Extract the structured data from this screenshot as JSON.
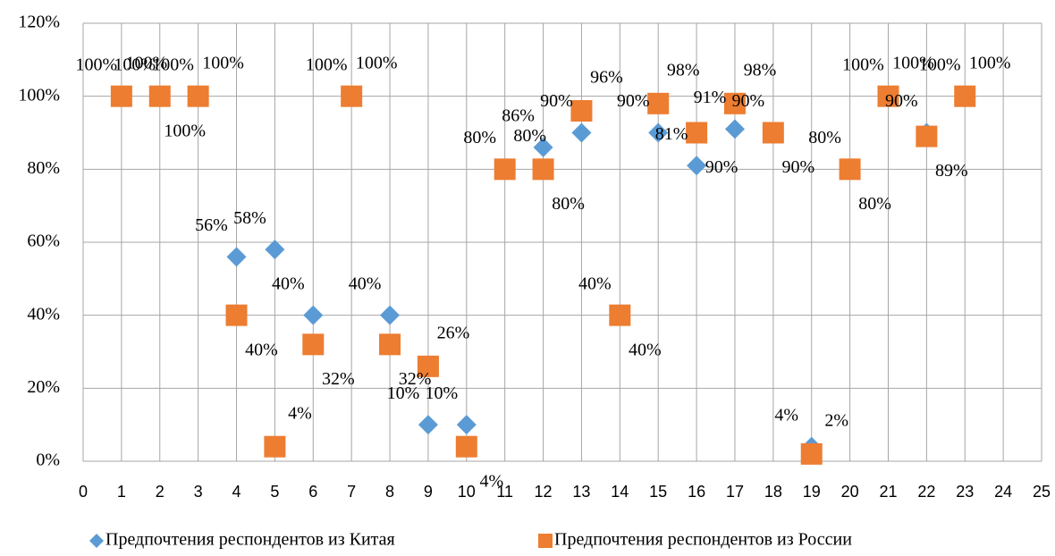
{
  "chart_data": {
    "type": "scatter",
    "xlim": [
      0,
      25
    ],
    "xticks": [
      0,
      1,
      2,
      3,
      4,
      5,
      6,
      7,
      8,
      9,
      10,
      11,
      12,
      13,
      14,
      15,
      16,
      17,
      18,
      19,
      20,
      21,
      22,
      23,
      24,
      25
    ],
    "ylim": [
      0,
      120
    ],
    "yticks": [
      {
        "value": 0,
        "label": "0%"
      },
      {
        "value": 20,
        "label": "20%"
      },
      {
        "value": 40,
        "label": "40%"
      },
      {
        "value": 60,
        "label": "60%"
      },
      {
        "value": 80,
        "label": "80%"
      },
      {
        "value": 100,
        "label": "100%"
      },
      {
        "value": 120,
        "label": "120%"
      }
    ],
    "grid": true,
    "legend": "bottom",
    "series": [
      {
        "name": "Предпочтения респондентов из Китая",
        "color": "#5b9bd5",
        "marker": "diamond",
        "x": [
          1,
          2,
          3,
          4,
          5,
          6,
          7,
          8,
          9,
          10,
          11,
          12,
          13,
          14,
          15,
          16,
          17,
          18,
          19,
          20,
          21,
          22,
          23
        ],
        "values": [
          100,
          100,
          100,
          56,
          58,
          40,
          100,
          40,
          10,
          10,
          80,
          86,
          90,
          40,
          90,
          81,
          91,
          90,
          4,
          80,
          100,
          90,
          100
        ],
        "value_labels": [
          "100%",
          "100%",
          "100%",
          "56%",
          "58%",
          "40%",
          "100%",
          "40%",
          "10%",
          "10%",
          "80%",
          "86%",
          "90%",
          "40%",
          "90%",
          "81%",
          "91%",
          "90%",
          "4%",
          "80%",
          "100%",
          "90%",
          "100%"
        ]
      },
      {
        "name": "Предпочтения респондентов из России",
        "color": "#ed7d31",
        "marker": "square",
        "x": [
          1,
          2,
          3,
          4,
          5,
          6,
          7,
          8,
          9,
          10,
          11,
          12,
          13,
          14,
          15,
          16,
          17,
          18,
          19,
          20,
          21,
          22,
          23
        ],
        "values": [
          100,
          100,
          100,
          40,
          4,
          32,
          100,
          32,
          26,
          4,
          80,
          80,
          96,
          40,
          98,
          90,
          98,
          90,
          2,
          80,
          100,
          89,
          100
        ],
        "value_labels": [
          "100%",
          "100%",
          "100%",
          "40%",
          "4%",
          "32%",
          "100%",
          "32%",
          "26%",
          "4%",
          "80%",
          "80%",
          "96%",
          "40%",
          "98%",
          "90%",
          "98%",
          "90%",
          "2%",
          "80%",
          "100%",
          "89%",
          "100%"
        ]
      }
    ]
  }
}
